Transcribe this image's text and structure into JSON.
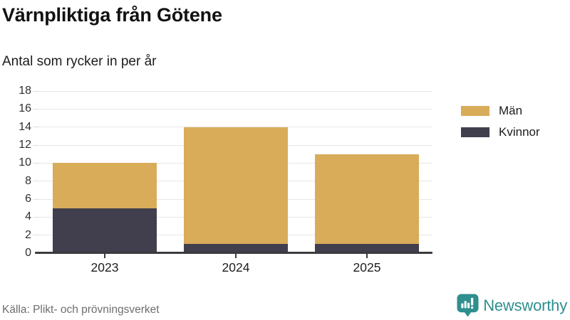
{
  "header": {
    "title": "Värnpliktiga från Götene",
    "subtitle": "Antal som rycker in per år"
  },
  "chart_data": {
    "type": "bar",
    "stacked": true,
    "title": "Värnpliktiga från Götene",
    "subtitle": "Antal som rycker in per år",
    "categories": [
      "2023",
      "2024",
      "2025"
    ],
    "series": [
      {
        "name": "Kvinnor",
        "color": "#413f4d",
        "values": [
          5,
          1,
          1
        ]
      },
      {
        "name": "Män",
        "color": "#d9ac5a",
        "values": [
          5,
          13,
          10
        ]
      }
    ],
    "totals": [
      10,
      14,
      11
    ],
    "xlabel": "",
    "ylabel": "",
    "ylim": [
      0,
      18
    ],
    "yticks": [
      0,
      2,
      4,
      6,
      8,
      10,
      12,
      14,
      16,
      18
    ],
    "grid": "horizontal",
    "legend_position": "right",
    "legend": [
      {
        "label": "Män",
        "color": "#d9ac5a"
      },
      {
        "label": "Kvinnor",
        "color": "#413f4d"
      }
    ]
  },
  "footer": {
    "source": "Källa: Plikt- och prövningsverket",
    "brand_name": "Newsworthy",
    "brand_icon": "newsworthy-speech-pin-bar-chart-icon",
    "brand_color": "#2e8f8e"
  }
}
